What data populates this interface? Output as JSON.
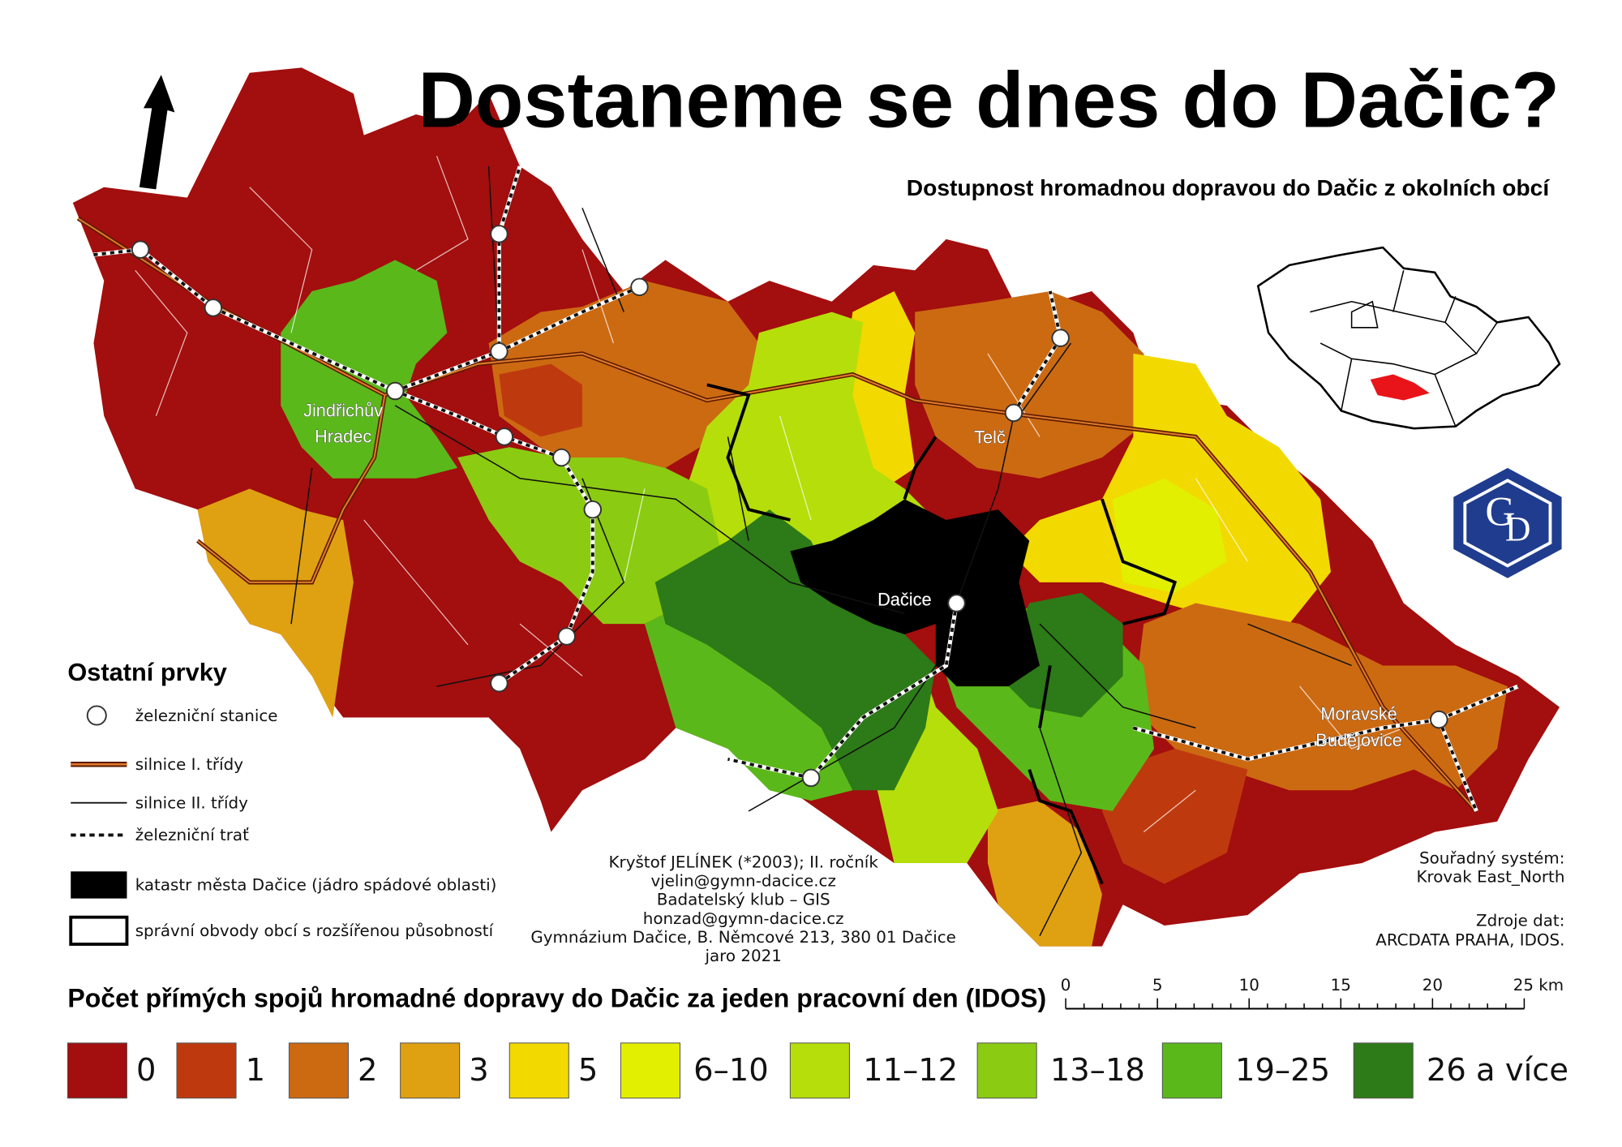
{
  "title": "Dostaneme se dnes do Dačic?",
  "subtitle": "Dostupnost hromadnou dopravou do Dačic z okolních obcí",
  "map_labels": [
    {
      "lines": [
        "Jindřichův",
        "Hradec"
      ]
    },
    {
      "lines": [
        "Telč"
      ]
    },
    {
      "lines": [
        "Dačice"
      ]
    },
    {
      "lines": [
        "Moravské",
        "Budějovice"
      ]
    }
  ],
  "other_elements": {
    "title": "Ostatní prvky",
    "items": [
      "železniční stanice",
      "silnice I. třídy",
      "silnice II. třídy",
      "železniční trať",
      "katastr města Dačice (jádro spádové oblasti)",
      "správní obvody obcí s rozšířenou působností"
    ]
  },
  "credits": [
    "Kryštof JELÍNEK (*2003); II. ročník",
    "vjelin@gymn-dacice.cz",
    "Badatelský klub – GIS",
    "honzad@gymn-dacice.cz",
    "Gymnázium Dačice, B. Němcové 213, 380 01 Dačice",
    "jaro 2021"
  ],
  "coordinate_system": [
    "Souřadný systém:",
    "Krovak East_North"
  ],
  "sources": [
    "Zdroje dat:",
    "ARCDATA PRAHA, IDOS."
  ],
  "scale_bar": [
    "0",
    "5",
    "10",
    "15",
    "20",
    "25 km"
  ],
  "legend": {
    "title": "Počet přímých spojů hromadné dopravy do Dačic za jeden pracovní den (IDOS)",
    "classes": [
      {
        "label": "0",
        "color": "#a30e0e"
      },
      {
        "label": "1",
        "color": "#be3a0e"
      },
      {
        "label": "2",
        "color": "#cc6a12"
      },
      {
        "label": "3",
        "color": "#dfa112"
      },
      {
        "label": "5",
        "color": "#f2d900"
      },
      {
        "label": "6–10",
        "color": "#e2ef00"
      },
      {
        "label": "11–12",
        "color": "#b6de0a"
      },
      {
        "label": "13–18",
        "color": "#8bcb12"
      },
      {
        "label": "19–25",
        "color": "#5bb81a"
      },
      {
        "label": "26 a více",
        "color": "#2d7a18"
      }
    ]
  }
}
